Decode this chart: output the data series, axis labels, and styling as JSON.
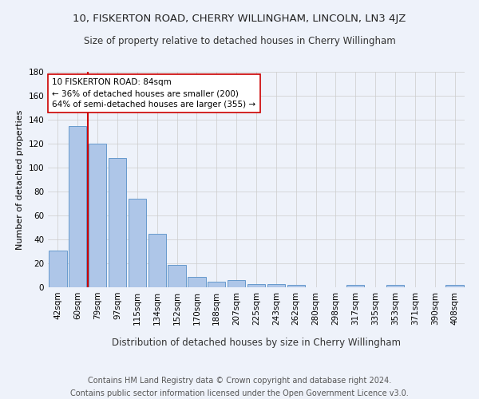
{
  "title1": "10, FISKERTON ROAD, CHERRY WILLINGHAM, LINCOLN, LN3 4JZ",
  "title2": "Size of property relative to detached houses in Cherry Willingham",
  "xlabel": "Distribution of detached houses by size in Cherry Willingham",
  "ylabel": "Number of detached properties",
  "footnote1": "Contains HM Land Registry data © Crown copyright and database right 2024.",
  "footnote2": "Contains public sector information licensed under the Open Government Licence v3.0.",
  "categories": [
    "42sqm",
    "60sqm",
    "79sqm",
    "97sqm",
    "115sqm",
    "134sqm",
    "152sqm",
    "170sqm",
    "188sqm",
    "207sqm",
    "225sqm",
    "243sqm",
    "262sqm",
    "280sqm",
    "298sqm",
    "317sqm",
    "335sqm",
    "353sqm",
    "371sqm",
    "390sqm",
    "408sqm"
  ],
  "values": [
    31,
    135,
    120,
    108,
    74,
    45,
    19,
    9,
    5,
    6,
    3,
    3,
    2,
    0,
    0,
    2,
    0,
    2,
    0,
    0,
    2
  ],
  "bar_color": "#aec6e8",
  "bar_edge_color": "#6699cc",
  "ylim": [
    0,
    180
  ],
  "yticks": [
    0,
    20,
    40,
    60,
    80,
    100,
    120,
    140,
    160,
    180
  ],
  "vline_x_index": 2,
  "vline_color": "#cc0000",
  "annotation_line1": "10 FISKERTON ROAD: 84sqm",
  "annotation_line2": "← 36% of detached houses are smaller (200)",
  "annotation_line3": "64% of semi-detached houses are larger (355) →",
  "annotation_box_color": "#ffffff",
  "annotation_box_edge": "#cc0000",
  "background_color": "#eef2fa",
  "grid_color": "#cccccc",
  "title1_fontsize": 9.5,
  "title2_fontsize": 8.5,
  "xlabel_fontsize": 8.5,
  "ylabel_fontsize": 8,
  "tick_fontsize": 7.5,
  "footnote_fontsize": 7,
  "annotation_fontsize": 7.5
}
